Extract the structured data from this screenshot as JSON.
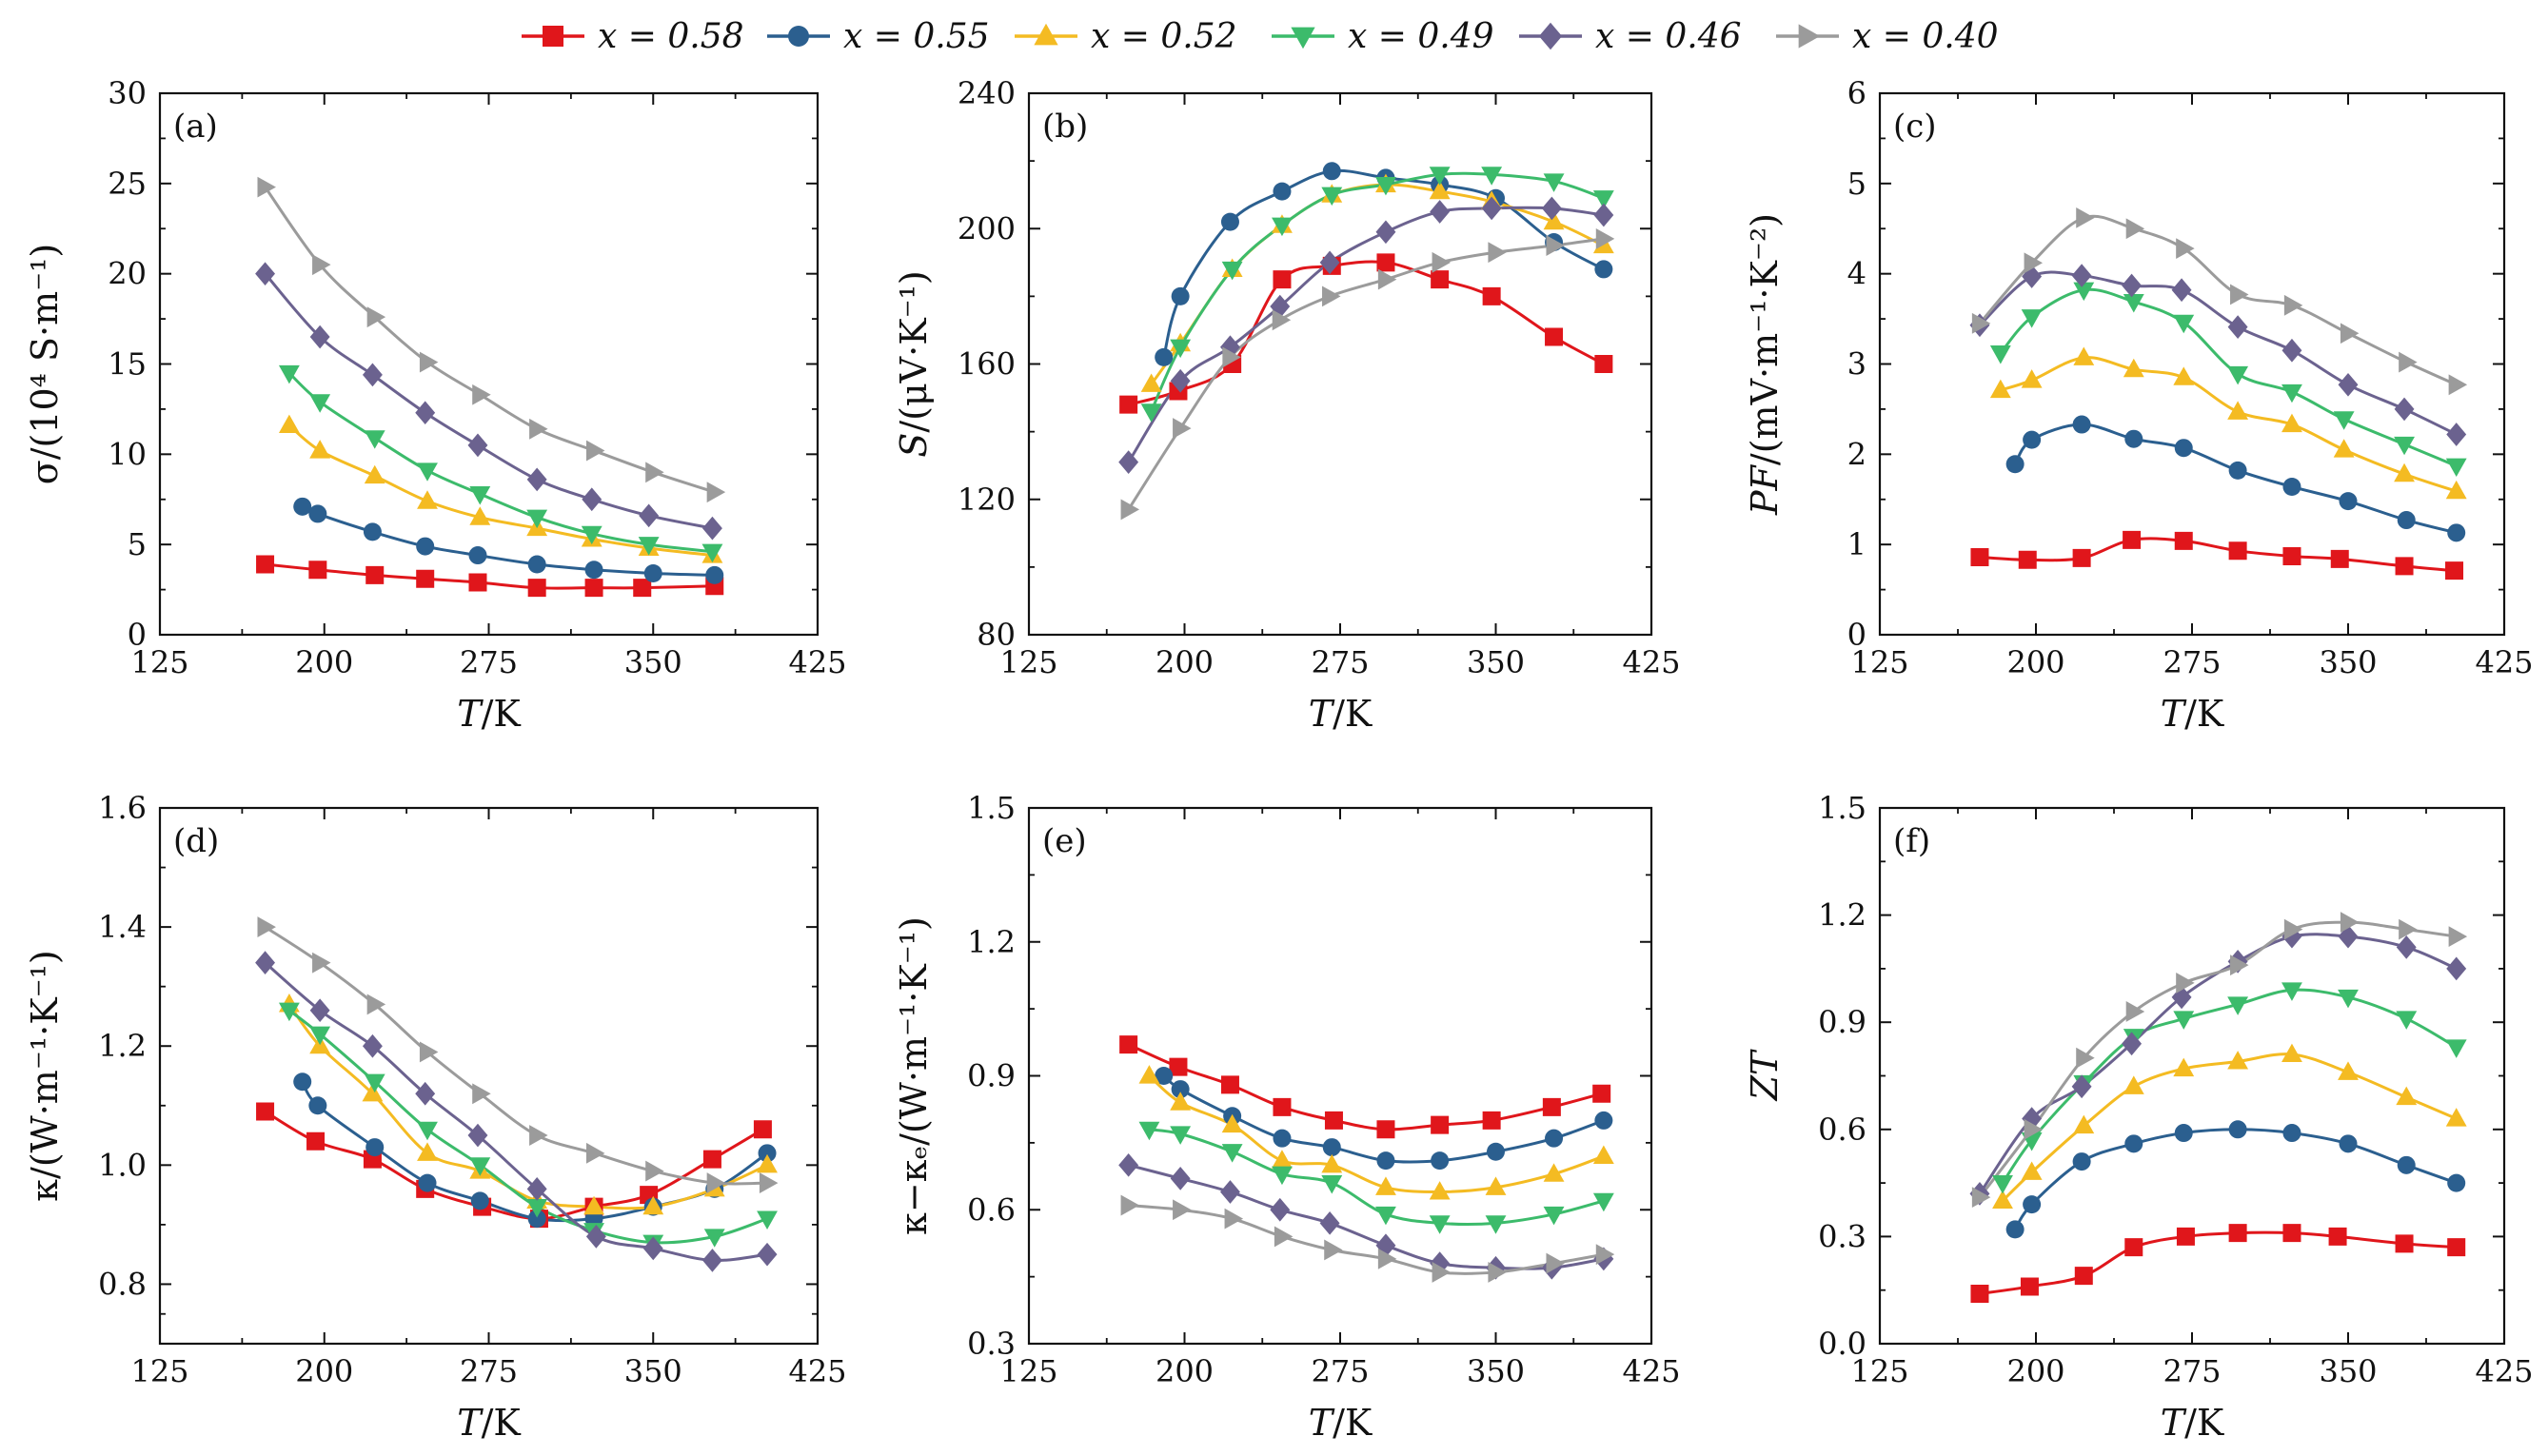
{
  "colors": {
    "x_0.58": "#e0161b",
    "x_0.55": "#2b5f8f",
    "x_0.52": "#f4bb22",
    "x_0.49": "#3cbb6b",
    "x_0.46": "#6b628f",
    "x_0.40": "#9b9b9b"
  },
  "legend": [
    {
      "label": "x = 0.58",
      "marker": "square",
      "color": "#e0161b"
    },
    {
      "label": "x = 0.55",
      "marker": "circle",
      "color": "#2b5f8f"
    },
    {
      "label": "x = 0.52",
      "marker": "triangle-up",
      "color": "#f4bb22"
    },
    {
      "label": "x = 0.49",
      "marker": "triangle-down",
      "color": "#3cbb6b"
    },
    {
      "label": "x = 0.46",
      "marker": "diamond",
      "color": "#6b628f"
    },
    {
      "label": "x = 0.40",
      "marker": "triangle-right",
      "color": "#9b9b9b"
    }
  ],
  "chart_data": [
    {
      "type": "line",
      "panel": "(a)",
      "xlabel": "T/K",
      "ylabel": "σ/(10⁴ S·m⁻¹)",
      "xlim": [
        125,
        425
      ],
      "ylim": [
        0,
        30
      ],
      "xticks": [
        125,
        200,
        275,
        350,
        425
      ],
      "yticks": [
        0,
        5,
        10,
        15,
        20,
        25,
        30
      ],
      "series": [
        {
          "name": "x = 0.58",
          "x": [
            173,
            197,
            223,
            246,
            270,
            297,
            323,
            345,
            378
          ],
          "y": [
            3.9,
            3.6,
            3.3,
            3.1,
            2.9,
            2.6,
            2.6,
            2.6,
            2.7
          ]
        },
        {
          "name": "x = 0.55",
          "x": [
            190,
            197,
            222,
            246,
            270,
            297,
            323,
            350,
            378
          ],
          "y": [
            7.1,
            6.7,
            5.7,
            4.9,
            4.4,
            3.9,
            3.6,
            3.4,
            3.3
          ]
        },
        {
          "name": "x = 0.52",
          "x": [
            184,
            198,
            223,
            247,
            271,
            297,
            322,
            348,
            377
          ],
          "y": [
            11.6,
            10.2,
            8.8,
            7.4,
            6.5,
            5.9,
            5.3,
            4.8,
            4.4
          ]
        },
        {
          "name": "x = 0.49",
          "x": [
            184,
            198,
            223,
            247,
            271,
            297,
            322,
            348,
            377
          ],
          "y": [
            14.5,
            12.9,
            10.9,
            9.1,
            7.8,
            6.5,
            5.6,
            5.0,
            4.6
          ]
        },
        {
          "name": "x = 0.46",
          "x": [
            173,
            198,
            222,
            246,
            270,
            297,
            322,
            348,
            377
          ],
          "y": [
            20.0,
            16.5,
            14.4,
            12.3,
            10.5,
            8.6,
            7.5,
            6.6,
            5.9
          ]
        },
        {
          "name": "x = 0.40",
          "x": [
            173,
            198,
            223,
            247,
            271,
            297,
            323,
            350,
            378
          ],
          "y": [
            24.8,
            20.5,
            17.6,
            15.1,
            13.3,
            11.4,
            10.2,
            9.0,
            7.9
          ]
        }
      ]
    },
    {
      "type": "line",
      "panel": "(b)",
      "xlabel": "T/K",
      "ylabel": "S/(μV·K⁻¹)",
      "xlim": [
        125,
        425
      ],
      "ylim": [
        80,
        240
      ],
      "xticks": [
        125,
        200,
        275,
        350,
        425
      ],
      "yticks": [
        80,
        120,
        160,
        200,
        240
      ],
      "series": [
        {
          "name": "x = 0.58",
          "x": [
            173,
            197,
            223,
            247,
            271,
            297,
            323,
            348,
            378,
            402
          ],
          "y": [
            148,
            152,
            160,
            185,
            189,
            190,
            185,
            180,
            168,
            160
          ]
        },
        {
          "name": "x = 0.55",
          "x": [
            190,
            198,
            222,
            247,
            271,
            297,
            323,
            350,
            378,
            402
          ],
          "y": [
            162,
            180,
            202,
            211,
            217,
            215,
            213,
            209,
            196,
            188
          ]
        },
        {
          "name": "x = 0.52",
          "x": [
            184,
            198,
            223,
            247,
            271,
            297,
            323,
            348,
            378,
            402
          ],
          "y": [
            154,
            166,
            188,
            201,
            210,
            213,
            211,
            208,
            202,
            195
          ]
        },
        {
          "name": "x = 0.49",
          "x": [
            184,
            198,
            223,
            247,
            271,
            297,
            323,
            348,
            378,
            402
          ],
          "y": [
            146,
            165,
            188,
            201,
            210,
            213,
            216,
            216,
            214,
            209
          ]
        },
        {
          "name": "x = 0.46",
          "x": [
            173,
            198,
            222,
            246,
            270,
            297,
            323,
            348,
            377,
            402
          ],
          "y": [
            131,
            155,
            165,
            177,
            190,
            199,
            205,
            206,
            206,
            204
          ]
        },
        {
          "name": "x = 0.40",
          "x": [
            173,
            198,
            222,
            246,
            270,
            297,
            323,
            350,
            378,
            402
          ],
          "y": [
            117,
            141,
            162,
            173,
            180,
            185,
            190,
            193,
            195,
            197
          ]
        }
      ]
    },
    {
      "type": "line",
      "panel": "(c)",
      "xlabel": "T/K",
      "ylabel": "PF/(mV·m⁻¹·K⁻²)",
      "xlim": [
        125,
        425
      ],
      "ylim": [
        0,
        6
      ],
      "xticks": [
        125,
        200,
        275,
        350,
        425
      ],
      "yticks": [
        0,
        1,
        2,
        3,
        4,
        5,
        6
      ],
      "series": [
        {
          "name": "x = 0.58",
          "x": [
            173,
            196,
            222,
            246,
            271,
            297,
            323,
            346,
            377,
            401
          ],
          "y": [
            0.86,
            0.83,
            0.85,
            1.05,
            1.04,
            0.93,
            0.87,
            0.84,
            0.76,
            0.71
          ]
        },
        {
          "name": "x = 0.55",
          "x": [
            190,
            198,
            222,
            247,
            271,
            297,
            323,
            350,
            378,
            402
          ],
          "y": [
            1.89,
            2.16,
            2.33,
            2.17,
            2.07,
            1.82,
            1.64,
            1.48,
            1.27,
            1.13
          ]
        },
        {
          "name": "x = 0.52",
          "x": [
            183,
            198,
            223,
            247,
            271,
            297,
            323,
            348,
            377,
            402
          ],
          "y": [
            2.71,
            2.82,
            3.07,
            2.94,
            2.85,
            2.47,
            2.33,
            2.05,
            1.78,
            1.59
          ]
        },
        {
          "name": "x = 0.49",
          "x": [
            183,
            198,
            223,
            247,
            271,
            297,
            323,
            348,
            377,
            402
          ],
          "y": [
            3.12,
            3.52,
            3.82,
            3.69,
            3.46,
            2.89,
            2.69,
            2.39,
            2.11,
            1.87
          ]
        },
        {
          "name": "x = 0.46",
          "x": [
            173,
            198,
            222,
            246,
            270,
            297,
            323,
            350,
            377,
            402
          ],
          "y": [
            3.43,
            3.97,
            3.98,
            3.87,
            3.82,
            3.41,
            3.15,
            2.77,
            2.5,
            2.22
          ]
        },
        {
          "name": "x = 0.40",
          "x": [
            173,
            198,
            223,
            247,
            271,
            297,
            323,
            350,
            378,
            402
          ],
          "y": [
            3.45,
            4.12,
            4.62,
            4.5,
            4.28,
            3.77,
            3.65,
            3.34,
            3.02,
            2.77
          ]
        }
      ]
    },
    {
      "type": "line",
      "panel": "(d)",
      "xlabel": "T/K",
      "ylabel": "κ/(W·m⁻¹·K⁻¹)",
      "xlim": [
        125,
        425
      ],
      "ylim": [
        0.7,
        1.6
      ],
      "xticks": [
        125,
        200,
        275,
        350,
        425
      ],
      "yticks": [
        0.8,
        1.0,
        1.2,
        1.4,
        1.6
      ],
      "series": [
        {
          "name": "x = 0.58",
          "x": [
            173,
            196,
            222,
            246,
            272,
            298,
            323,
            348,
            377,
            400
          ],
          "y": [
            1.09,
            1.04,
            1.01,
            0.96,
            0.93,
            0.91,
            0.93,
            0.95,
            1.01,
            1.06
          ]
        },
        {
          "name": "x = 0.55",
          "x": [
            190,
            197,
            223,
            247,
            271,
            297,
            323,
            350,
            378,
            402
          ],
          "y": [
            1.14,
            1.1,
            1.03,
            0.97,
            0.94,
            0.91,
            0.91,
            0.93,
            0.96,
            1.02
          ]
        },
        {
          "name": "x = 0.52",
          "x": [
            184,
            198,
            222,
            247,
            271,
            297,
            323,
            350,
            378,
            402
          ],
          "y": [
            1.27,
            1.2,
            1.12,
            1.02,
            0.99,
            0.94,
            0.93,
            0.93,
            0.96,
            1.0
          ]
        },
        {
          "name": "x = 0.49",
          "x": [
            184,
            198,
            223,
            247,
            271,
            297,
            323,
            350,
            378,
            402
          ],
          "y": [
            1.26,
            1.22,
            1.14,
            1.06,
            1.0,
            0.93,
            0.89,
            0.87,
            0.88,
            0.91
          ]
        },
        {
          "name": "x = 0.46",
          "x": [
            173,
            198,
            222,
            246,
            270,
            297,
            324,
            350,
            377,
            402
          ],
          "y": [
            1.34,
            1.26,
            1.2,
            1.12,
            1.05,
            0.96,
            0.88,
            0.86,
            0.84,
            0.85
          ]
        },
        {
          "name": "x = 0.40",
          "x": [
            173,
            198,
            223,
            247,
            271,
            297,
            323,
            350,
            378,
            402
          ],
          "y": [
            1.4,
            1.34,
            1.27,
            1.19,
            1.12,
            1.05,
            1.02,
            0.99,
            0.97,
            0.97
          ]
        }
      ]
    },
    {
      "type": "line",
      "panel": "(e)",
      "xlabel": "T/K",
      "ylabel": "κ−κₑ/(W·m⁻¹·K⁻¹)",
      "xlim": [
        125,
        425
      ],
      "ylim": [
        0.3,
        1.5
      ],
      "xticks": [
        125,
        200,
        275,
        350,
        425
      ],
      "yticks": [
        0.3,
        0.6,
        0.9,
        1.2,
        1.5
      ],
      "series": [
        {
          "name": "x = 0.58",
          "x": [
            173,
            197,
            222,
            247,
            272,
            297,
            323,
            348,
            377,
            401
          ],
          "y": [
            0.97,
            0.92,
            0.88,
            0.83,
            0.8,
            0.78,
            0.79,
            0.8,
            0.83,
            0.86
          ]
        },
        {
          "name": "x = 0.55",
          "x": [
            190,
            198,
            223,
            247,
            271,
            297,
            323,
            350,
            378,
            402
          ],
          "y": [
            0.9,
            0.87,
            0.81,
            0.76,
            0.74,
            0.71,
            0.71,
            0.73,
            0.76,
            0.8
          ]
        },
        {
          "name": "x = 0.52",
          "x": [
            183,
            198,
            223,
            247,
            271,
            297,
            323,
            350,
            378,
            402
          ],
          "y": [
            0.9,
            0.84,
            0.79,
            0.71,
            0.7,
            0.65,
            0.64,
            0.65,
            0.68,
            0.72
          ]
        },
        {
          "name": "x = 0.49",
          "x": [
            183,
            198,
            223,
            247,
            271,
            297,
            323,
            350,
            378,
            402
          ],
          "y": [
            0.78,
            0.77,
            0.73,
            0.68,
            0.66,
            0.59,
            0.57,
            0.57,
            0.59,
            0.62
          ]
        },
        {
          "name": "x = 0.46",
          "x": [
            173,
            198,
            222,
            246,
            270,
            297,
            323,
            350,
            377,
            402
          ],
          "y": [
            0.7,
            0.67,
            0.64,
            0.6,
            0.57,
            0.52,
            0.48,
            0.47,
            0.47,
            0.49
          ]
        },
        {
          "name": "x = 0.40",
          "x": [
            173,
            198,
            223,
            247,
            271,
            297,
            323,
            350,
            378,
            402
          ],
          "y": [
            0.61,
            0.6,
            0.58,
            0.54,
            0.51,
            0.49,
            0.46,
            0.46,
            0.48,
            0.5
          ]
        }
      ]
    },
    {
      "type": "line",
      "panel": "(f)",
      "xlabel": "T/K",
      "ylabel": "ZT",
      "xlim": [
        125,
        425
      ],
      "ylim": [
        0,
        1.5
      ],
      "xticks": [
        125,
        200,
        275,
        350,
        425
      ],
      "yticks": [
        0,
        0.3,
        0.6,
        0.9,
        1.2,
        1.5
      ],
      "series": [
        {
          "name": "x = 0.58",
          "x": [
            173,
            197,
            223,
            247,
            272,
            297,
            323,
            345,
            377,
            402
          ],
          "y": [
            0.14,
            0.16,
            0.19,
            0.27,
            0.3,
            0.31,
            0.31,
            0.3,
            0.28,
            0.27
          ]
        },
        {
          "name": "x = 0.55",
          "x": [
            190,
            198,
            222,
            247,
            271,
            297,
            323,
            350,
            378,
            402
          ],
          "y": [
            0.32,
            0.39,
            0.51,
            0.56,
            0.59,
            0.6,
            0.59,
            0.56,
            0.5,
            0.45
          ]
        },
        {
          "name": "x = 0.52",
          "x": [
            184,
            198,
            223,
            247,
            271,
            297,
            323,
            350,
            378,
            402
          ],
          "y": [
            0.4,
            0.48,
            0.61,
            0.72,
            0.77,
            0.79,
            0.81,
            0.76,
            0.69,
            0.63
          ]
        },
        {
          "name": "x = 0.49",
          "x": [
            184,
            198,
            223,
            247,
            271,
            297,
            323,
            350,
            378,
            402
          ],
          "y": [
            0.45,
            0.57,
            0.73,
            0.86,
            0.91,
            0.95,
            0.99,
            0.97,
            0.91,
            0.83
          ]
        },
        {
          "name": "x = 0.46",
          "x": [
            173,
            198,
            222,
            246,
            270,
            297,
            323,
            350,
            378,
            402
          ],
          "y": [
            0.42,
            0.63,
            0.72,
            0.84,
            0.97,
            1.07,
            1.14,
            1.14,
            1.11,
            1.05
          ]
        },
        {
          "name": "x = 0.40",
          "x": [
            173,
            198,
            223,
            247,
            271,
            297,
            323,
            350,
            378,
            402
          ],
          "y": [
            0.41,
            0.6,
            0.8,
            0.93,
            1.01,
            1.06,
            1.16,
            1.18,
            1.16,
            1.14
          ]
        }
      ]
    }
  ]
}
